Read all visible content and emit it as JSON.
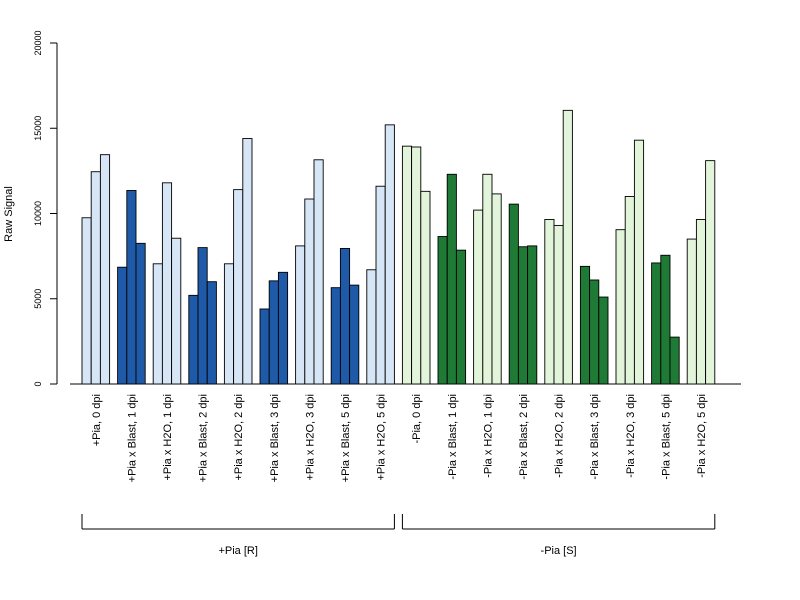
{
  "chart_data": {
    "type": "bar",
    "ylabel": "Raw Signal",
    "ylim": [
      0,
      20000
    ],
    "yticks": [
      0,
      5000,
      10000,
      15000,
      20000
    ],
    "ytick_labels": [
      "0",
      "5000",
      "10000",
      "15000",
      "20000"
    ],
    "categories": [
      "+Pia, 0 dpi",
      "+Pia x Blast, 1 dpi",
      "+Pia x H2O, 1 dpi",
      "+Pia x Blast, 2 dpi",
      "+Pia x H2O, 2 dpi",
      "+Pia x Blast, 3 dpi",
      "+Pia x H2O, 3 dpi",
      "+Pia x Blast, 5 dpi",
      "+Pia x H2O, 5 dpi",
      "-Pia, 0 dpi",
      "-Pia x Blast, 1 dpi",
      "-Pia x H2O, 1 dpi",
      "-Pia x Blast, 2 dpi",
      "-Pia x H2O, 2 dpi",
      "-Pia x Blast, 3 dpi",
      "-Pia x H2O, 3 dpi",
      "-Pia x Blast, 5 dpi",
      "-Pia x H2O, 5 dpi"
    ],
    "values": [
      [
        9750,
        12450,
        13450
      ],
      [
        6850,
        11350,
        8250
      ],
      [
        7050,
        11800,
        8550
      ],
      [
        5200,
        8000,
        6000
      ],
      [
        7050,
        11400,
        14400
      ],
      [
        4400,
        6050,
        6550
      ],
      [
        8100,
        10850,
        13150
      ],
      [
        5650,
        7950,
        5800
      ],
      [
        6700,
        11600,
        15200
      ],
      [
        13950,
        13900,
        11300
      ],
      [
        8650,
        12300,
        7850
      ],
      [
        10200,
        12300,
        11150
      ],
      [
        10550,
        8050,
        8100
      ],
      [
        9650,
        9300,
        16050
      ],
      [
        6900,
        6100,
        5100
      ],
      [
        9050,
        11000,
        14300
      ],
      [
        7100,
        7550,
        2750
      ],
      [
        8500,
        9650,
        13100
      ]
    ],
    "bar_colors": [
      "#d6e6f6",
      "#1f5aa8",
      "#d6e6f6",
      "#1f5aa8",
      "#d6e6f6",
      "#1f5aa8",
      "#d6e6f6",
      "#1f5aa8",
      "#d6e6f6",
      "#e2f5db",
      "#1f7a36",
      "#e2f5db",
      "#1f7a36",
      "#e2f5db",
      "#1f7a36",
      "#e2f5db",
      "#1f7a36",
      "#e2f5db"
    ],
    "groups": [
      {
        "label": "+Pia [R]",
        "from": 0,
        "to": 8
      },
      {
        "label": "-Pia [S]",
        "from": 9,
        "to": 17
      }
    ],
    "grid": false,
    "legend": "none"
  }
}
